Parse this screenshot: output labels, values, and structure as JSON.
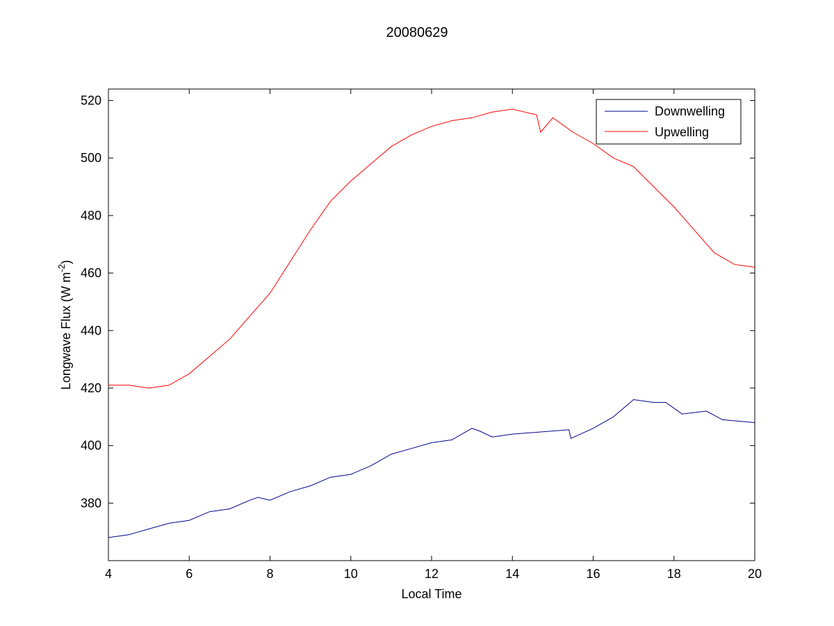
{
  "chart_data": {
    "type": "line",
    "title": "20080629",
    "xlabel": "Local Time",
    "ylabel": "Longwave Flux (W m",
    "ylabel_superscript": "-2",
    "ylabel_suffix": ")",
    "xlim": [
      4,
      20
    ],
    "ylim": [
      360,
      524
    ],
    "x_ticks": [
      4,
      6,
      8,
      10,
      12,
      14,
      16,
      18,
      20
    ],
    "y_ticks": [
      380,
      400,
      420,
      440,
      460,
      480,
      500,
      520
    ],
    "grid": false,
    "legend_position": "top-right",
    "series": [
      {
        "name": "Downwelling",
        "color": "#00008b",
        "x": [
          4.0,
          4.5,
          5.0,
          5.5,
          6.0,
          6.5,
          7.0,
          7.5,
          7.7,
          8.0,
          8.5,
          9.0,
          9.5,
          10.0,
          10.5,
          11.0,
          11.5,
          12.0,
          12.5,
          13.0,
          13.2,
          13.5,
          14.0,
          15.4,
          15.45,
          16.0,
          16.5,
          17.0,
          17.5,
          17.8,
          18.2,
          18.8,
          19.2,
          20.0
        ],
        "y": [
          368,
          369,
          371,
          373,
          374,
          377,
          378,
          381,
          382,
          381,
          384,
          386,
          389,
          390,
          393,
          397,
          399,
          401,
          402,
          406,
          405,
          403,
          404,
          405.5,
          402.5,
          406,
          410,
          416,
          415,
          415,
          411,
          412,
          409,
          408
        ]
      },
      {
        "name": "Upwelling",
        "color": "#ff0000",
        "x": [
          4.0,
          4.5,
          5.0,
          5.5,
          6.0,
          6.5,
          7.0,
          7.5,
          8.0,
          8.5,
          9.0,
          9.5,
          10.0,
          10.5,
          11.0,
          11.5,
          12.0,
          12.5,
          13.0,
          13.5,
          14.0,
          14.6,
          14.7,
          15.0,
          15.5,
          16.0,
          16.5,
          17.0,
          17.5,
          18.0,
          18.5,
          19.0,
          19.5,
          20.0
        ],
        "y": [
          421,
          421,
          420,
          421,
          425,
          431,
          437,
          445,
          453,
          464,
          475,
          485,
          492,
          498,
          504,
          508,
          511,
          513,
          514,
          516,
          517,
          515,
          509,
          514,
          509,
          505,
          500,
          497,
          490,
          483,
          475,
          467,
          463,
          462
        ]
      }
    ]
  }
}
